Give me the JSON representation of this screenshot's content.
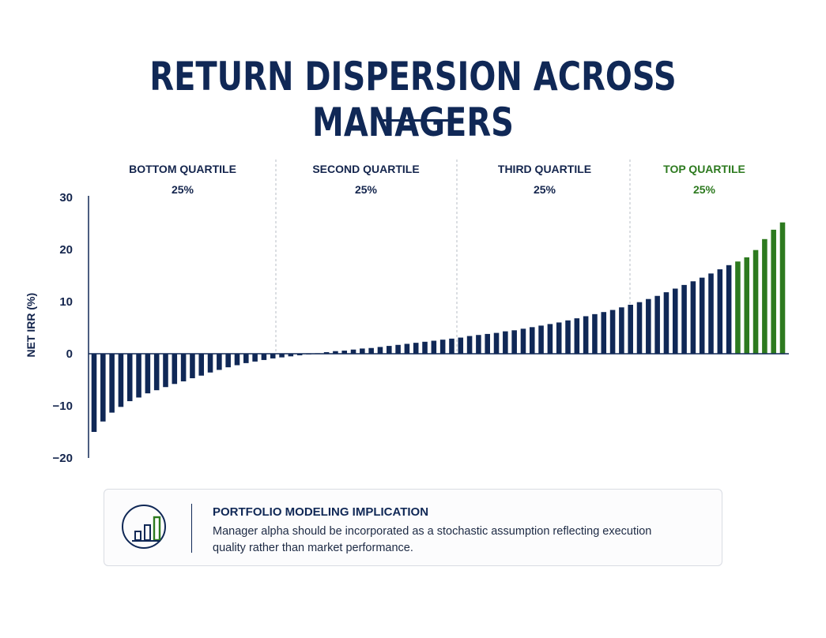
{
  "title": "RETURN DISPERSION ACROSS MANAGERS",
  "colors": {
    "navy": "#102856",
    "green": "#2d7a1f"
  },
  "chart_data": {
    "type": "bar",
    "ylabel": "NET IRR (%)",
    "ylim": [
      -20,
      30
    ],
    "yticks": [
      "30",
      "20",
      "10",
      "0",
      "−10",
      "−20"
    ],
    "ytick_values": [
      30,
      20,
      10,
      0,
      -10,
      -20
    ],
    "quartiles": [
      {
        "label": "BOTTOM QUARTILE",
        "share": "25%",
        "color": "#14254d"
      },
      {
        "label": "SECOND QUARTILE",
        "share": "25%",
        "color": "#14254d"
      },
      {
        "label": "THIRD QUARTILE",
        "share": "25%",
        "color": "#14254d"
      },
      {
        "label": "TOP QUARTILE",
        "share": "25%",
        "color": "#2d7a1f"
      }
    ],
    "highlight_count": 6,
    "values": [
      -15,
      -13,
      -11.3,
      -10.2,
      -9.1,
      -8.4,
      -7.6,
      -7.0,
      -6.4,
      -5.8,
      -5.3,
      -4.7,
      -4.2,
      -3.6,
      -3.1,
      -2.6,
      -2.2,
      -1.8,
      -1.5,
      -1.2,
      -0.9,
      -0.7,
      -0.5,
      -0.3,
      -0.1,
      0.1,
      0.3,
      0.5,
      0.6,
      0.8,
      1.0,
      1.1,
      1.3,
      1.5,
      1.7,
      1.9,
      2.1,
      2.3,
      2.5,
      2.7,
      2.9,
      3.1,
      3.4,
      3.6,
      3.8,
      4.0,
      4.3,
      4.5,
      4.8,
      5.1,
      5.4,
      5.7,
      6.0,
      6.4,
      6.8,
      7.2,
      7.6,
      8.0,
      8.4,
      8.9,
      9.4,
      9.9,
      10.5,
      11.1,
      11.8,
      12.5,
      13.2,
      13.9,
      14.6,
      15.4,
      16.2,
      17.0,
      17.7,
      18.5,
      19.9,
      22.0,
      23.8,
      25.2
    ]
  },
  "callout": {
    "icon": "bar-chart-icon",
    "title": "PORTFOLIO MODELING IMPLICATION",
    "text": "Manager alpha should be incorporated as a stochastic assumption reflecting execution quality rather than market performance."
  }
}
